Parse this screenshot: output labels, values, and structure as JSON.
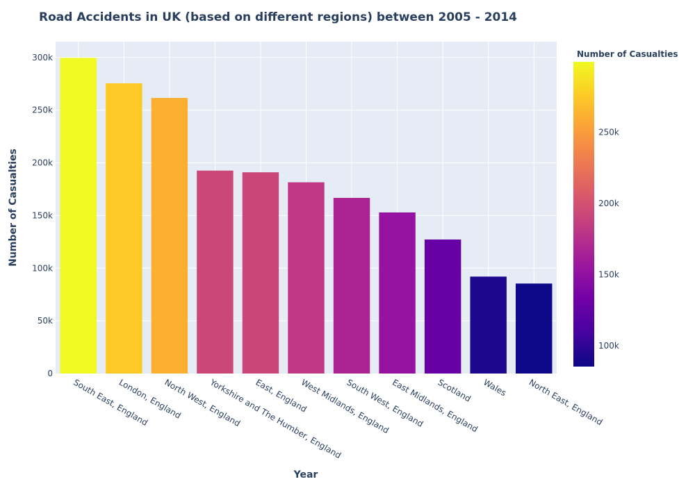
{
  "chart_data": {
    "type": "bar",
    "title": "Road Accidents in UK (based on different regions) between 2005 - 2014",
    "xlabel": "Year",
    "ylabel": "Number of Casualties",
    "categories": [
      "South East, England",
      "London, England",
      "North West, England",
      "Yorkshire and The Humber, England",
      "East, England",
      "West Midlands, England",
      "South West, England",
      "East Midlands, England",
      "Scotland",
      "Wales",
      "North East, England"
    ],
    "values": [
      299600,
      275500,
      261600,
      192600,
      191000,
      181500,
      166700,
      152900,
      127200,
      92000,
      85400
    ],
    "ylim": [
      0,
      315000
    ],
    "yticks": [
      0,
      50000,
      100000,
      150000,
      200000,
      250000,
      300000
    ],
    "ytick_labels": [
      "0",
      "50k",
      "100k",
      "150k",
      "200k",
      "250k",
      "300k"
    ],
    "grid": true,
    "colorbar": {
      "title": "Number of Casualties",
      "range": [
        85400,
        299600
      ],
      "ticks": [
        100000,
        150000,
        200000,
        250000
      ],
      "tick_labels": [
        "100k",
        "150k",
        "200k",
        "250k"
      ],
      "colorscale": [
        "#0d0887",
        "#46039f",
        "#7201a8",
        "#9c179e",
        "#bd3786",
        "#d8576b",
        "#ed7953",
        "#fb9f3a",
        "#fdca26",
        "#f0f921"
      ]
    },
    "colors": {
      "plot_bg": "#e5ecf6",
      "grid": "#ffffff",
      "text": "#2a3f5f",
      "tick": "#506784"
    }
  }
}
